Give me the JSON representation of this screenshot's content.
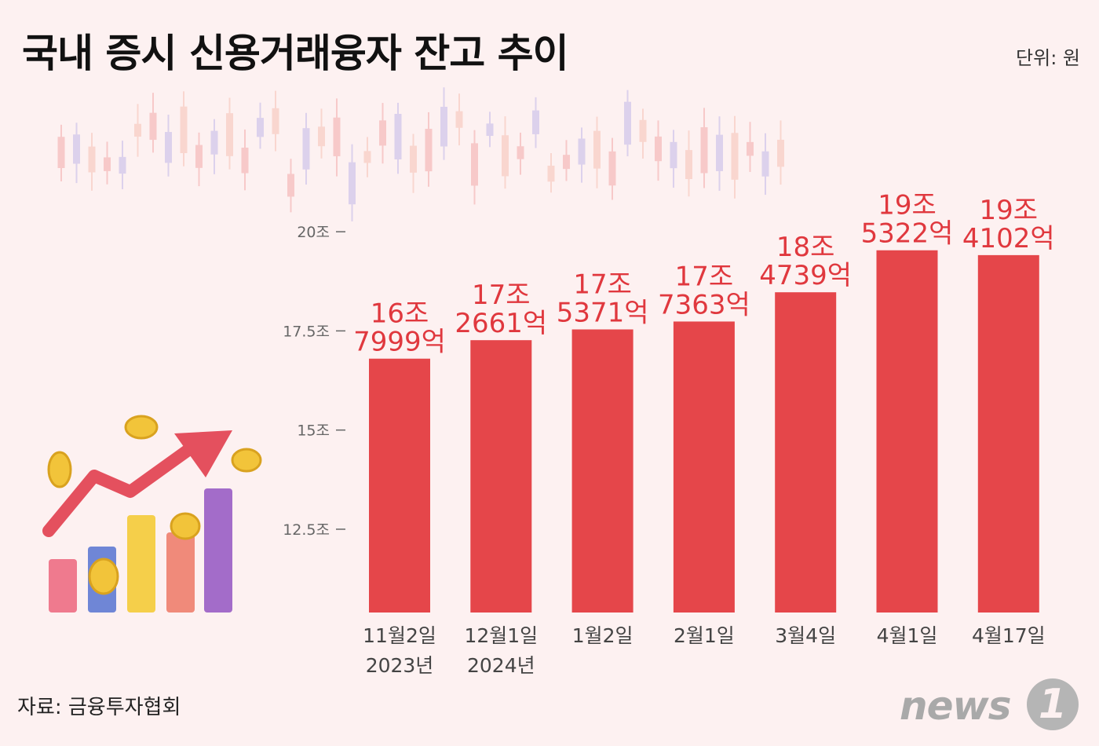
{
  "title": "국내 증시 신용거래융자 잔고 추이",
  "unit": "단위: 원",
  "source": "자료: 금융투자협회",
  "logo": {
    "text": "news",
    "badge": "1"
  },
  "colors": {
    "bar": "#e5464a",
    "label": "#e0383e",
    "background": "#fdf1f1"
  },
  "chart_data": {
    "type": "bar",
    "title": "국내 증시 신용거래융자 잔고 추이",
    "unit_label": "단위: 원",
    "categories": [
      [
        "11월2일",
        "2023년"
      ],
      [
        "12월1일",
        "2024년"
      ],
      [
        "1월2일"
      ],
      [
        "2월1일"
      ],
      [
        "3월4일"
      ],
      [
        "4월1일"
      ],
      [
        "4월17일"
      ]
    ],
    "values": [
      16.7999,
      17.2661,
      17.5371,
      17.7363,
      18.4739,
      19.5322,
      19.4102
    ],
    "value_labels": [
      [
        "16조",
        "7999억"
      ],
      [
        "17조",
        "2661억"
      ],
      [
        "17조",
        "5371억"
      ],
      [
        "17조",
        "7363억"
      ],
      [
        "18조",
        "4739억"
      ],
      [
        "19조",
        "5322억"
      ],
      [
        "19조",
        "4102억"
      ]
    ],
    "y_ticks": [
      12.5,
      15,
      17.5,
      20
    ],
    "y_tick_labels": [
      "12.5조",
      "15조",
      "17.5조",
      "20조"
    ],
    "ylim": [
      10.4,
      20.2
    ],
    "value_unit": "조원",
    "grid": false,
    "legend": "none"
  }
}
